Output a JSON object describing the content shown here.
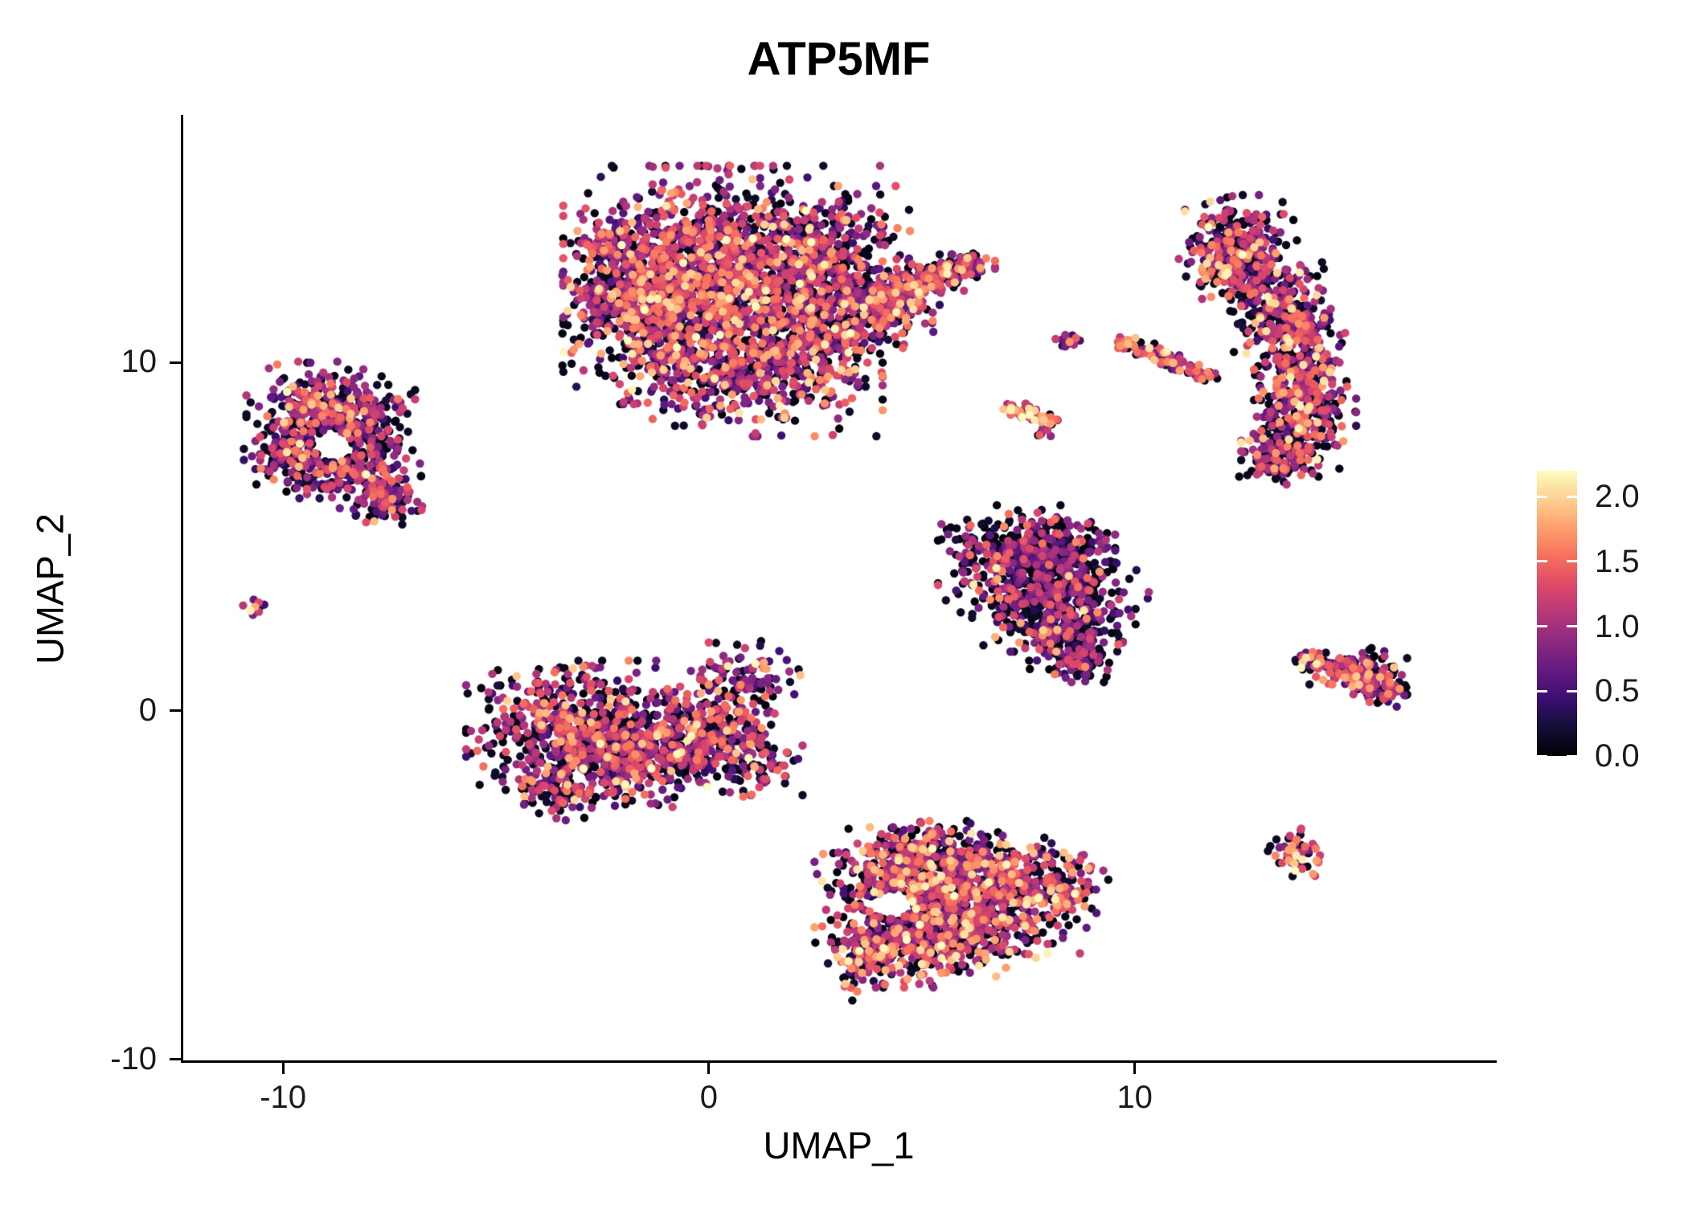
{
  "chart_data": {
    "type": "scatter",
    "title": "ATP5MF",
    "xlabel": "UMAP_1",
    "ylabel": "UMAP_2",
    "xlim": [
      -12.4,
      18.5
    ],
    "ylim": [
      -10.1,
      17.1
    ],
    "grid": false,
    "legend_position": "right",
    "x_ticks": [
      {
        "value": -10,
        "label": "-10"
      },
      {
        "value": 0,
        "label": "0"
      },
      {
        "value": 10,
        "label": "10"
      }
    ],
    "y_ticks": [
      {
        "value": -10,
        "label": "-10"
      },
      {
        "value": 0,
        "label": "0"
      },
      {
        "value": 10,
        "label": "10"
      }
    ],
    "colorbar": {
      "min": 0,
      "max": 2.2,
      "colormap": "magma",
      "ticks": [
        {
          "value": 0,
          "label": "0.0"
        },
        {
          "value": 0.5,
          "label": "0.5"
        },
        {
          "value": 1,
          "label": "1.0"
        },
        {
          "value": 1.5,
          "label": "1.5"
        },
        {
          "value": 2,
          "label": "2.0"
        }
      ],
      "stops": [
        "#000004",
        "#140e36",
        "#3b0f70",
        "#641a80",
        "#8c2981",
        "#b73779",
        "#de4968",
        "#f7705c",
        "#fe9f6d",
        "#fecf92",
        "#fcfdbf"
      ]
    },
    "clusters": [
      {
        "name": "top-center-large",
        "zero_frac": 0.3,
        "expr_mean": 1.05,
        "bright_frac": 0.03,
        "blobs": [
          {
            "x": 0.3,
            "y": 12.4,
            "sx": 1.55,
            "sy": 1.35,
            "n": 1500
          },
          {
            "x": -1.4,
            "y": 11.2,
            "sx": 0.85,
            "sy": 1.0,
            "n": 400
          },
          {
            "x": -2.0,
            "y": 12.6,
            "sx": 0.6,
            "sy": 0.7,
            "n": 200
          },
          {
            "x": 1.2,
            "y": 9.8,
            "sx": 1.2,
            "sy": 0.8,
            "n": 450
          },
          {
            "x": 2.6,
            "y": 12.9,
            "sx": 0.9,
            "sy": 0.9,
            "n": 380
          },
          {
            "x": 2.9,
            "y": 10.9,
            "sx": 0.7,
            "sy": 0.6,
            "n": 200
          },
          {
            "x": 3.9,
            "y": 11.9,
            "sx": 0.35,
            "sy": 0.25,
            "n": 90
          },
          {
            "x": 4.7,
            "y": 12.2,
            "sx": 0.35,
            "sy": 0.22,
            "n": 90
          },
          {
            "x": 5.4,
            "y": 12.5,
            "sx": 0.35,
            "sy": 0.2,
            "n": 80
          },
          {
            "x": 6.0,
            "y": 12.8,
            "sx": 0.3,
            "sy": 0.18,
            "n": 60
          },
          {
            "x": 4.4,
            "y": 11.4,
            "sx": 0.45,
            "sy": 0.25,
            "n": 90
          }
        ]
      },
      {
        "name": "upper-left-ring",
        "zero_frac": 0.35,
        "expr_mean": 0.95,
        "holes": [
          {
            "x": -8.85,
            "y": 7.6,
            "r": 0.42
          }
        ],
        "blobs": [
          {
            "x": -9.3,
            "y": 8.7,
            "sx": 0.65,
            "sy": 0.55,
            "n": 230
          },
          {
            "x": -8.1,
            "y": 8.4,
            "sx": 0.5,
            "sy": 0.5,
            "n": 150
          },
          {
            "x": -9.6,
            "y": 7.3,
            "sx": 0.55,
            "sy": 0.5,
            "n": 170
          },
          {
            "x": -8.2,
            "y": 6.9,
            "sx": 0.6,
            "sy": 0.55,
            "n": 190
          },
          {
            "x": -7.6,
            "y": 6.1,
            "sx": 0.4,
            "sy": 0.4,
            "n": 90
          }
        ]
      },
      {
        "name": "tiny-far-left",
        "zero_frac": 0.25,
        "expr_mean": 1.0,
        "blobs": [
          {
            "x": -10.65,
            "y": 3.0,
            "sx": 0.12,
            "sy": 0.16,
            "n": 14
          }
        ]
      },
      {
        "name": "center-left",
        "zero_frac": 0.35,
        "expr_mean": 1.0,
        "bright_frac": 0.02,
        "blobs": [
          {
            "x": -3.3,
            "y": -0.6,
            "sx": 1.0,
            "sy": 0.85,
            "n": 560
          },
          {
            "x": -1.9,
            "y": -1.2,
            "sx": 0.9,
            "sy": 0.65,
            "n": 330
          },
          {
            "x": -0.7,
            "y": -0.9,
            "sx": 0.7,
            "sy": 0.6,
            "n": 240
          },
          {
            "x": 0.3,
            "y": -0.5,
            "sx": 0.5,
            "sy": 0.45,
            "n": 120
          },
          {
            "x": 1.0,
            "y": -1.5,
            "sx": 0.5,
            "sy": 0.4,
            "n": 100
          },
          {
            "x": 0.4,
            "y": 1.0,
            "sx": 0.6,
            "sy": 0.45,
            "n": 60
          },
          {
            "x": 1.3,
            "y": 0.8,
            "sx": 0.45,
            "sy": 0.5,
            "n": 45
          },
          {
            "x": -3.4,
            "y": -2.3,
            "sx": 0.6,
            "sy": 0.35,
            "n": 80
          }
        ]
      },
      {
        "name": "bottom-center",
        "zero_frac": 0.3,
        "expr_mean": 1.1,
        "bright_frac": 0.04,
        "holes": [
          {
            "x": 4.35,
            "y": -5.55,
            "r": 0.42
          }
        ],
        "blobs": [
          {
            "x": 4.4,
            "y": -4.9,
            "sx": 0.8,
            "sy": 0.65,
            "n": 330
          },
          {
            "x": 5.9,
            "y": -4.6,
            "sx": 0.9,
            "sy": 0.6,
            "n": 330
          },
          {
            "x": 7.0,
            "y": -5.4,
            "sx": 0.8,
            "sy": 0.65,
            "n": 290
          },
          {
            "x": 4.7,
            "y": -6.5,
            "sx": 0.7,
            "sy": 0.6,
            "n": 240
          },
          {
            "x": 6.1,
            "y": -6.3,
            "sx": 0.8,
            "sy": 0.55,
            "n": 240
          },
          {
            "x": 3.7,
            "y": -7.0,
            "sx": 0.5,
            "sy": 0.55,
            "n": 120
          },
          {
            "x": 5.0,
            "y": -3.9,
            "sx": 0.5,
            "sy": 0.3,
            "n": 80
          },
          {
            "x": 8.3,
            "y": -5.0,
            "sx": 0.45,
            "sy": 0.5,
            "n": 100
          }
        ]
      },
      {
        "name": "mid-right-triangle",
        "zero_frac": 0.5,
        "expr_mean": 0.8,
        "blobs": [
          {
            "x": 7.5,
            "y": 4.7,
            "sx": 0.85,
            "sy": 0.5,
            "n": 280
          },
          {
            "x": 7.9,
            "y": 3.9,
            "sx": 1.05,
            "sy": 0.5,
            "n": 340
          },
          {
            "x": 8.1,
            "y": 2.9,
            "sx": 0.8,
            "sy": 0.5,
            "n": 250
          },
          {
            "x": 8.4,
            "y": 2.0,
            "sx": 0.55,
            "sy": 0.4,
            "n": 150
          },
          {
            "x": 8.7,
            "y": 1.35,
            "sx": 0.3,
            "sy": 0.22,
            "n": 60
          }
        ]
      },
      {
        "name": "right-crescent",
        "zero_frac": 0.35,
        "expr_mean": 1.0,
        "bright_frac": 0.03,
        "blobs": [
          {
            "x": 12.5,
            "y": 13.6,
            "sx": 0.55,
            "sy": 0.5,
            "n": 150
          },
          {
            "x": 12.0,
            "y": 12.9,
            "sx": 0.45,
            "sy": 0.45,
            "n": 100
          },
          {
            "x": 13.0,
            "y": 12.3,
            "sx": 0.6,
            "sy": 0.5,
            "n": 170
          },
          {
            "x": 13.5,
            "y": 11.2,
            "sx": 0.6,
            "sy": 0.55,
            "n": 180
          },
          {
            "x": 13.9,
            "y": 10.0,
            "sx": 0.55,
            "sy": 0.55,
            "n": 180
          },
          {
            "x": 14.0,
            "y": 8.8,
            "sx": 0.5,
            "sy": 0.5,
            "n": 170
          },
          {
            "x": 13.7,
            "y": 7.8,
            "sx": 0.5,
            "sy": 0.45,
            "n": 140
          },
          {
            "x": 13.3,
            "y": 7.1,
            "sx": 0.4,
            "sy": 0.3,
            "n": 80
          }
        ]
      },
      {
        "name": "small-dot-mid",
        "zero_frac": 0.2,
        "expr_mean": 1.1,
        "blobs": [
          {
            "x": 8.4,
            "y": 10.7,
            "sx": 0.13,
            "sy": 0.13,
            "n": 14
          }
        ]
      },
      {
        "name": "streak-upper",
        "zero_frac": 0.25,
        "expr_mean": 1.2,
        "bright_frac": 0.06,
        "blobs": [
          {
            "x": 9.9,
            "y": 10.55,
            "sx": 0.18,
            "sy": 0.1,
            "n": 22
          },
          {
            "x": 10.35,
            "y": 10.3,
            "sx": 0.18,
            "sy": 0.1,
            "n": 22
          },
          {
            "x": 10.75,
            "y": 10.15,
            "sx": 0.16,
            "sy": 0.09,
            "n": 20
          }
        ]
      },
      {
        "name": "streak-lower",
        "zero_frac": 0.3,
        "expr_mean": 1.0,
        "blobs": [
          {
            "x": 10.9,
            "y": 10.0,
            "sx": 0.16,
            "sy": 0.09,
            "n": 18
          },
          {
            "x": 11.3,
            "y": 9.8,
            "sx": 0.18,
            "sy": 0.09,
            "n": 20
          },
          {
            "x": 11.7,
            "y": 9.6,
            "sx": 0.14,
            "sy": 0.08,
            "n": 14
          }
        ]
      },
      {
        "name": "streak-bright",
        "zero_frac": 0.15,
        "expr_mean": 1.3,
        "bright_frac": 0.1,
        "blobs": [
          {
            "x": 7.3,
            "y": 8.7,
            "sx": 0.16,
            "sy": 0.1,
            "n": 20
          },
          {
            "x": 7.65,
            "y": 8.5,
            "sx": 0.16,
            "sy": 0.1,
            "n": 20
          },
          {
            "x": 7.95,
            "y": 8.35,
            "sx": 0.13,
            "sy": 0.09,
            "n": 14
          }
        ]
      },
      {
        "name": "tiny-pair",
        "zero_frac": 0.4,
        "expr_mean": 0.8,
        "blobs": [
          {
            "x": 7.85,
            "y": 7.95,
            "sx": 0.09,
            "sy": 0.08,
            "n": 7
          }
        ]
      },
      {
        "name": "right-wedge",
        "zero_frac": 0.3,
        "expr_mean": 1.05,
        "blobs": [
          {
            "x": 14.2,
            "y": 1.45,
            "sx": 0.25,
            "sy": 0.15,
            "n": 40
          },
          {
            "x": 14.9,
            "y": 1.2,
            "sx": 0.4,
            "sy": 0.25,
            "n": 70
          },
          {
            "x": 15.5,
            "y": 0.95,
            "sx": 0.4,
            "sy": 0.28,
            "n": 80
          },
          {
            "x": 15.85,
            "y": 0.55,
            "sx": 0.28,
            "sy": 0.2,
            "n": 50
          }
        ]
      },
      {
        "name": "small-dot-right",
        "zero_frac": 0.25,
        "expr_mean": 1.15,
        "bright_frac": 0.06,
        "blobs": [
          {
            "x": 13.8,
            "y": -4.1,
            "sx": 0.28,
            "sy": 0.3,
            "n": 60
          }
        ]
      }
    ]
  }
}
